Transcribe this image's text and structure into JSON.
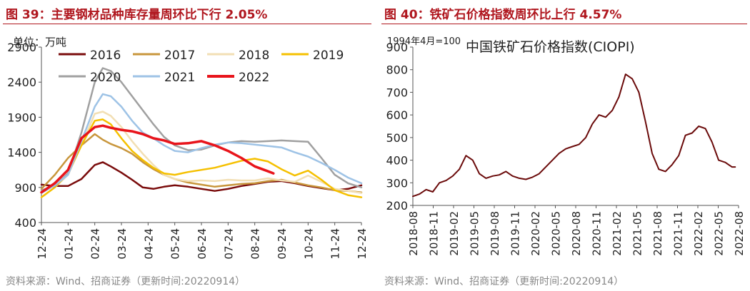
{
  "left": {
    "title": "图 39：主要钢材品种库存量周环比下行 2.05%",
    "source": "资料来源：Wind、招商证券（更新时间:20220914）"
  },
  "right": {
    "title": "图 40：铁矿石价格指数周环比上行 4.57%",
    "source": "资料来源：Wind、招商证券（更新时间:20220914）"
  },
  "chart_data": [
    {
      "type": "line",
      "title": "主要钢材品种库存量",
      "unit_label": "单位：万吨",
      "ylim": [
        400,
        2900
      ],
      "yticks": [
        400,
        900,
        1400,
        1900,
        2400,
        2900
      ],
      "x_tick_labels": [
        "12-24",
        "01-24",
        "02-24",
        "03-24",
        "04-24",
        "05-24",
        "06-24",
        "07-24",
        "08-24",
        "09-24",
        "10-24",
        "11-24",
        "12-24"
      ],
      "x_range": [
        0,
        12
      ],
      "series": [
        {
          "name": "2016",
          "color": "#7a0c0c",
          "width": 2.5,
          "x": [
            0,
            0.5,
            1,
            1.5,
            2,
            2.3,
            2.6,
            3,
            3.4,
            3.8,
            4.2,
            4.6,
            5,
            5.5,
            6,
            6.5,
            7,
            7.5,
            8,
            8.5,
            9,
            9.5,
            10,
            10.5,
            11,
            11.5,
            12
          ],
          "values": [
            940,
            920,
            920,
            1020,
            1220,
            1260,
            1200,
            1110,
            1010,
            900,
            880,
            910,
            930,
            910,
            880,
            850,
            880,
            920,
            950,
            980,
            990,
            960,
            920,
            890,
            860,
            880,
            930
          ]
        },
        {
          "name": "2017",
          "color": "#c8963c",
          "width": 2.5,
          "x": [
            0,
            0.5,
            1,
            1.5,
            2,
            2.3,
            2.6,
            3,
            3.4,
            3.8,
            4.2,
            4.6,
            5,
            5.5,
            6,
            6.5,
            7,
            7.5,
            8,
            8.5,
            9,
            9.5,
            10,
            10.5,
            11,
            11.5,
            12
          ],
          "values": [
            880,
            1080,
            1320,
            1500,
            1660,
            1580,
            1520,
            1460,
            1380,
            1260,
            1160,
            1080,
            1020,
            970,
            940,
            910,
            930,
            950,
            960,
            990,
            1010,
            970,
            930,
            900,
            860,
            850,
            830
          ]
        },
        {
          "name": "2018",
          "color": "#f2dfb4",
          "width": 2.5,
          "x": [
            0,
            0.5,
            1,
            1.5,
            2,
            2.3,
            2.6,
            3,
            3.4,
            3.8,
            4.2,
            4.6,
            5,
            5.5,
            6,
            6.5,
            7,
            7.5,
            8,
            8.5,
            9,
            9.5,
            10,
            10.5,
            11,
            11.5,
            12
          ],
          "values": [
            760,
            900,
            1080,
            1500,
            1950,
            1980,
            1920,
            1760,
            1560,
            1380,
            1220,
            1080,
            1020,
            990,
            1000,
            990,
            1010,
            1000,
            1000,
            1030,
            1000,
            980,
            1070,
            980,
            880,
            850,
            820
          ]
        },
        {
          "name": "2019",
          "color": "#f5c000",
          "width": 2.5,
          "x": [
            0,
            0.5,
            1,
            1.5,
            2,
            2.3,
            2.6,
            3,
            3.4,
            3.8,
            4.2,
            4.6,
            5,
            5.5,
            6,
            6.5,
            7,
            7.5,
            8,
            8.5,
            9,
            9.5,
            10,
            10.5,
            11,
            11.5,
            12
          ],
          "values": [
            760,
            900,
            1100,
            1500,
            1850,
            1870,
            1800,
            1600,
            1420,
            1290,
            1180,
            1100,
            1080,
            1120,
            1150,
            1180,
            1230,
            1280,
            1310,
            1270,
            1160,
            1070,
            1140,
            1010,
            860,
            790,
            760
          ]
        },
        {
          "name": "2020",
          "color": "#a0a0a0",
          "width": 2.5,
          "x": [
            0,
            0.5,
            1,
            1.5,
            2,
            2.3,
            2.6,
            3,
            3.4,
            3.8,
            4.2,
            4.6,
            5,
            5.5,
            6,
            6.5,
            7,
            7.5,
            8,
            8.5,
            9,
            9.5,
            10,
            10.5,
            11,
            11.5,
            12
          ],
          "values": [
            860,
            920,
            1100,
            1680,
            2400,
            2600,
            2560,
            2400,
            2200,
            2000,
            1800,
            1620,
            1500,
            1430,
            1440,
            1500,
            1540,
            1560,
            1550,
            1560,
            1570,
            1560,
            1550,
            1320,
            1080,
            960,
            900
          ]
        },
        {
          "name": "2021",
          "color": "#9ec3e6",
          "width": 2.5,
          "x": [
            0,
            0.5,
            1,
            1.5,
            2,
            2.3,
            2.6,
            3,
            3.4,
            3.8,
            4.2,
            4.6,
            5,
            5.5,
            6,
            6.5,
            7,
            7.5,
            8,
            8.5,
            9,
            9.5,
            10,
            10.5,
            11,
            11.5,
            12
          ],
          "values": [
            820,
            930,
            1080,
            1560,
            2050,
            2230,
            2200,
            2050,
            1850,
            1680,
            1600,
            1500,
            1420,
            1400,
            1460,
            1510,
            1540,
            1530,
            1510,
            1490,
            1470,
            1400,
            1340,
            1250,
            1150,
            1040,
            960
          ]
        },
        {
          "name": "2022",
          "color": "#e8141b",
          "width": 3.5,
          "x": [
            0,
            0.5,
            1,
            1.5,
            2,
            2.3,
            2.6,
            3,
            3.4,
            3.8,
            4.2,
            4.6,
            5,
            5.5,
            6,
            6.5,
            7,
            7.5,
            8,
            8.5,
            8.7
          ],
          "values": [
            830,
            960,
            1150,
            1600,
            1760,
            1780,
            1750,
            1720,
            1700,
            1660,
            1600,
            1570,
            1520,
            1530,
            1560,
            1500,
            1420,
            1320,
            1200,
            1130,
            1100
          ]
        }
      ]
    },
    {
      "type": "line",
      "title": "中国铁矿石价格指数(CIOPI)",
      "annotation": "1994年4月=100",
      "ylim": [
        200,
        900
      ],
      "yticks": [
        200,
        300,
        400,
        500,
        600,
        700,
        800,
        900
      ],
      "x_tick_labels": [
        "2018-08",
        "2018-11",
        "2019-02",
        "2019-05",
        "2019-08",
        "2019-11",
        "2020-02",
        "2020-05",
        "2020-08",
        "2020-11",
        "2021-02",
        "2021-05",
        "2021-08",
        "2021-11",
        "2022-02",
        "2022-05",
        "2022-08"
      ],
      "x_range": [
        0,
        49
      ],
      "series": [
        {
          "name": "中国铁矿石价格指数(CIOPI)",
          "color": "#6b0b0b",
          "width": 2,
          "x": [
            0,
            1,
            2,
            3,
            4,
            5,
            6,
            7,
            8,
            9,
            10,
            11,
            12,
            13,
            14,
            15,
            16,
            17,
            18,
            19,
            20,
            21,
            22,
            23,
            24,
            25,
            26,
            27,
            28,
            29,
            30,
            31,
            32,
            33,
            34,
            35,
            36,
            37,
            38,
            39,
            40,
            41,
            42,
            43,
            44,
            45,
            46,
            47,
            48,
            48.5
          ],
          "values": [
            240,
            250,
            270,
            260,
            300,
            310,
            330,
            360,
            420,
            400,
            340,
            320,
            330,
            335,
            350,
            330,
            320,
            315,
            325,
            340,
            370,
            400,
            430,
            450,
            460,
            470,
            500,
            560,
            600,
            590,
            620,
            680,
            780,
            760,
            700,
            570,
            430,
            360,
            350,
            380,
            420,
            510,
            520,
            550,
            540,
            480,
            400,
            390,
            370,
            370
          ]
        }
      ]
    }
  ]
}
